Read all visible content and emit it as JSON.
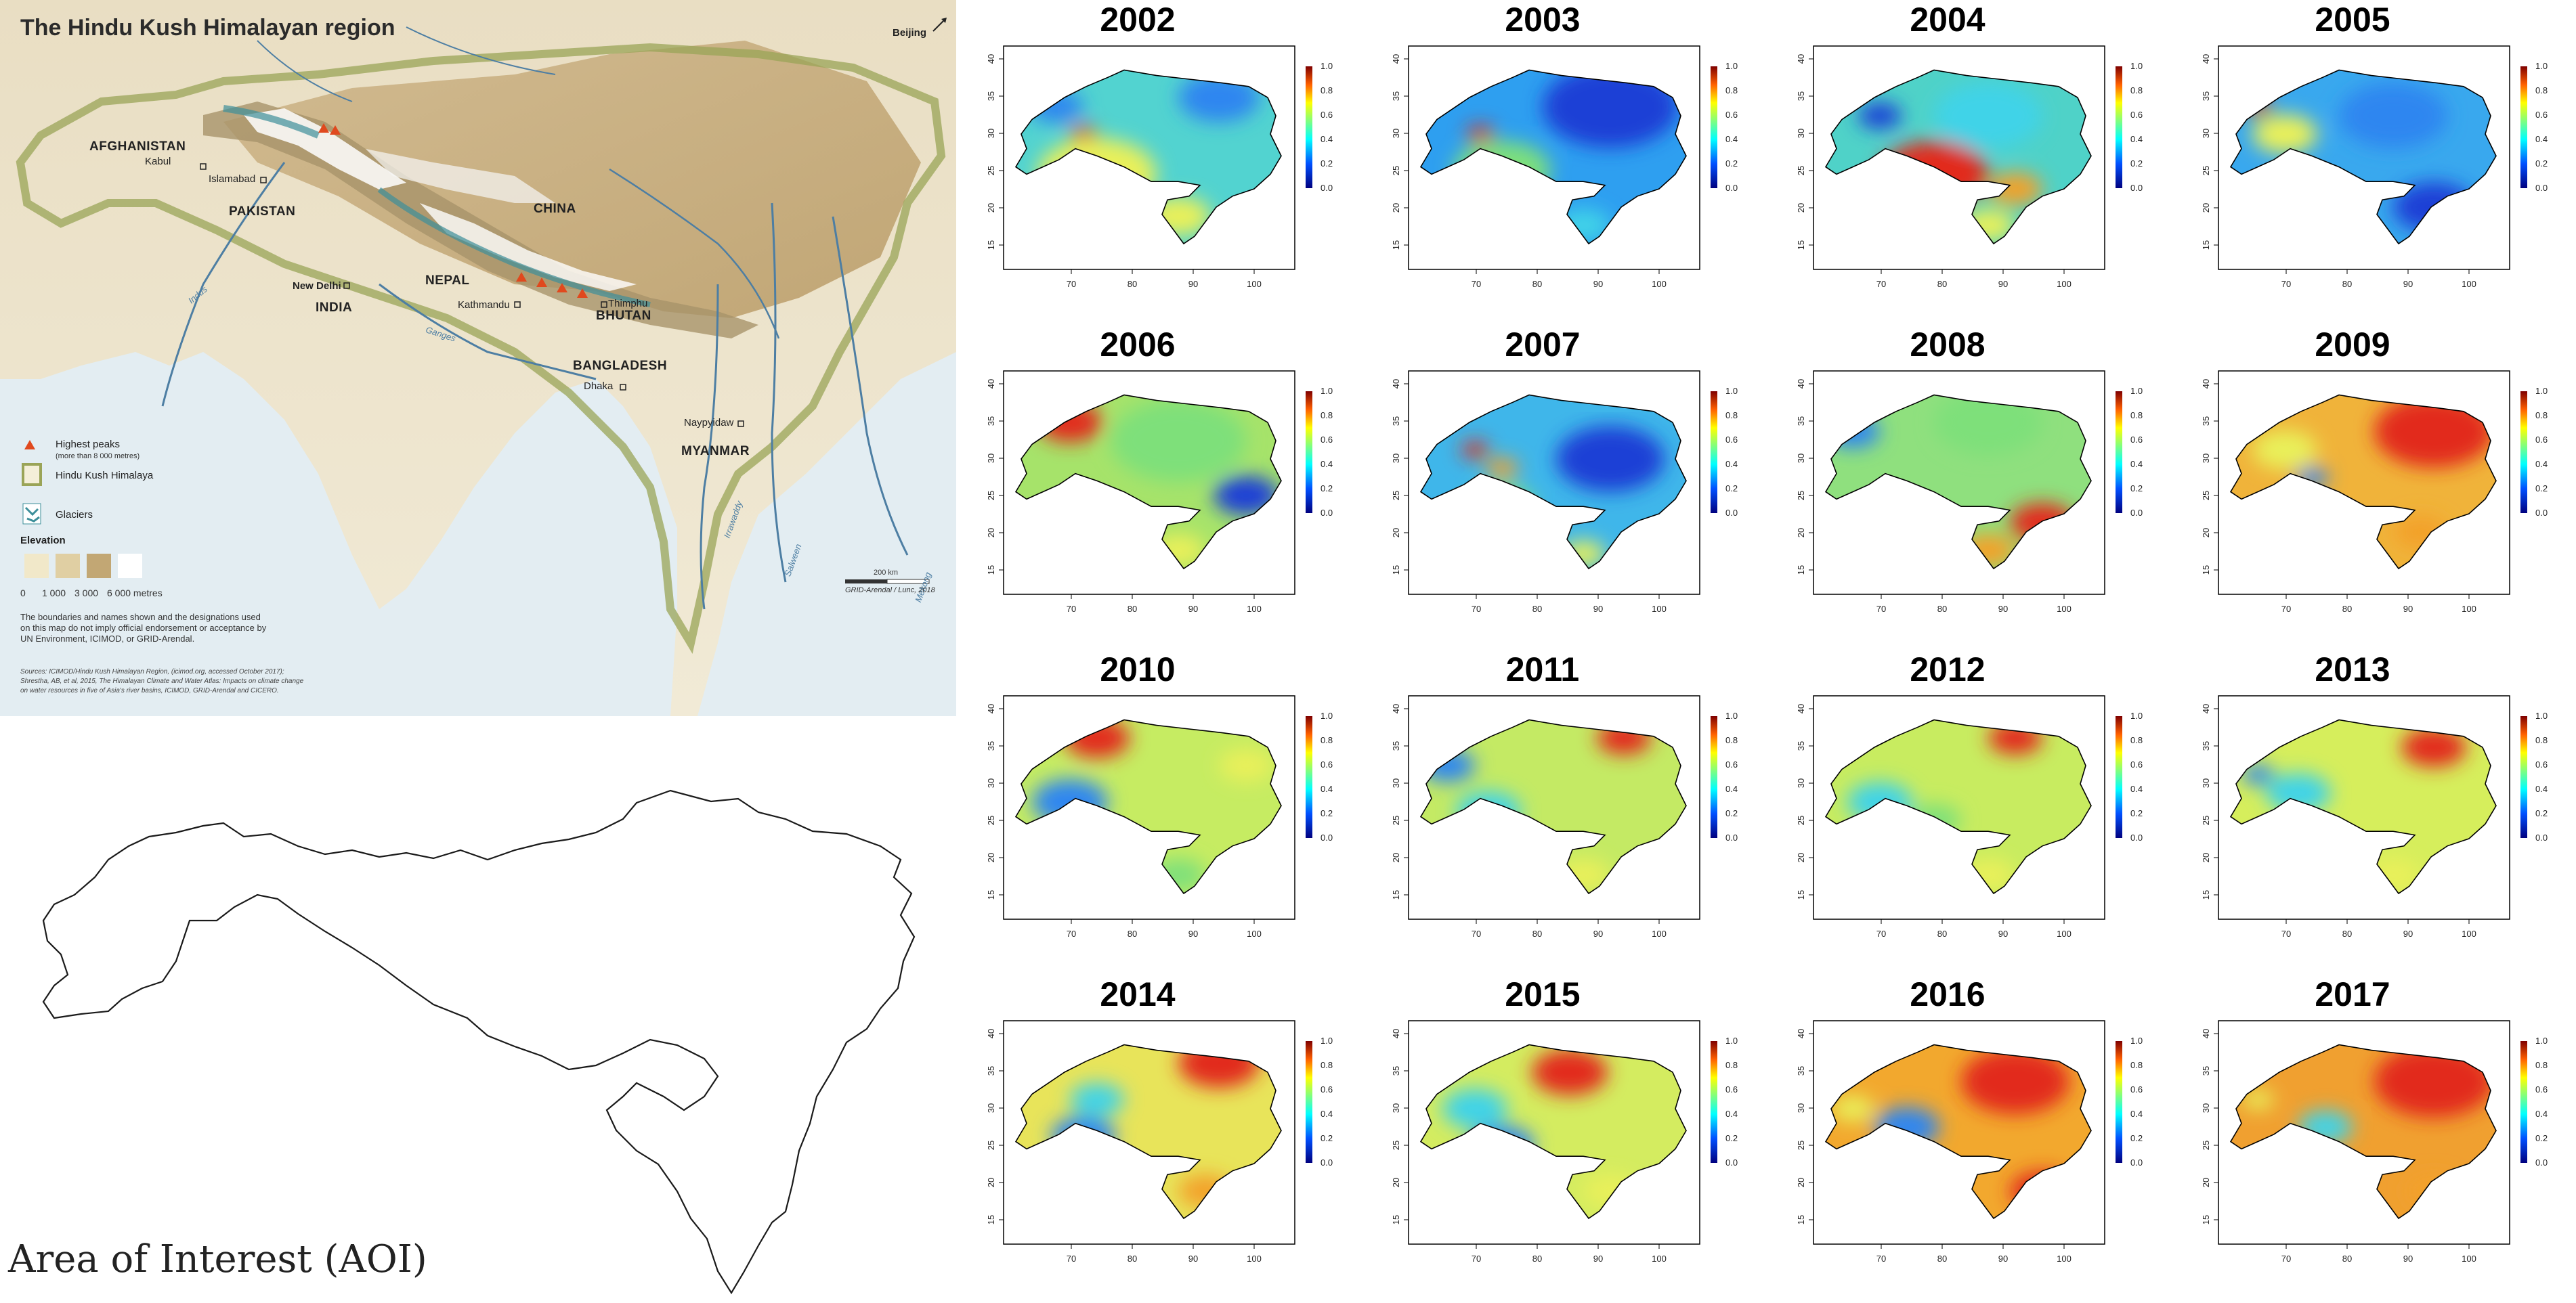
{
  "map": {
    "title": "The Hindu Kush Himalayan region",
    "countries": [
      {
        "id": "afghanistan",
        "name": "AFGHANISTAN"
      },
      {
        "id": "pakistan",
        "name": "PAKISTAN"
      },
      {
        "id": "china",
        "name": "CHINA"
      },
      {
        "id": "india",
        "name": "INDIA"
      },
      {
        "id": "nepal",
        "name": "NEPAL"
      },
      {
        "id": "bhutan",
        "name": "BHUTAN"
      },
      {
        "id": "bangladesh",
        "name": "BANGLADESH"
      },
      {
        "id": "myanmar",
        "name": "MYANMAR"
      }
    ],
    "cities": [
      {
        "id": "beijing",
        "name": "Beijing"
      },
      {
        "id": "kabul",
        "name": "Kabul"
      },
      {
        "id": "islamabad",
        "name": "Islamabad"
      },
      {
        "id": "new-delhi",
        "name": "New Delhi"
      },
      {
        "id": "kathmandu",
        "name": "Kathmandu"
      },
      {
        "id": "thimphu",
        "name": "Thimphu"
      },
      {
        "id": "dhaka",
        "name": "Dhaka"
      },
      {
        "id": "naypyidaw",
        "name": "Naypyidaw"
      }
    ],
    "rivers": [
      {
        "id": "indus",
        "name": "Indus"
      },
      {
        "id": "ganges",
        "name": "Ganges"
      },
      {
        "id": "irrawaddy",
        "name": "Irrawaddy"
      },
      {
        "id": "salween",
        "name": "Salween"
      },
      {
        "id": "mekong",
        "name": "Mekong"
      }
    ],
    "legend": {
      "peaks": "Highest peaks",
      "peaks_sub": "(more than 8 000 metres)",
      "hkh": "Hindu Kush Himalaya",
      "glaciers": "Glaciers",
      "elevation": "Elevation",
      "elevation_ticks": [
        "0",
        "1 000",
        "3 000",
        "6 000 metres"
      ]
    },
    "scale": "200 km",
    "credit": "GRID-Arendal / Lunc, 2018",
    "disclaimer": [
      "The boundaries and names shown and the designations used",
      "on this map do not imply official endorsement or acceptance by",
      "UN Environment, ICIMOD, or GRID-Arendal."
    ],
    "sources": [
      "Sources: ICIMOD/Hindu Kush Himalayan Region, (icimod.org, accessed October 2017);",
      "Shrestha, AB, et al, 2015, The Himalayan Climate and Water Atlas: Impacts on climate change",
      "on water resources in five of Asia's river basins, ICIMOD, GRID-Arendal and CICERO."
    ]
  },
  "aoi": {
    "label": "Area of Interest (AOI)"
  },
  "panels": {
    "years": [
      "2002",
      "2003",
      "2004",
      "2005",
      "2006",
      "2007",
      "2008",
      "2009",
      "2010",
      "2011",
      "2012",
      "2013",
      "2014",
      "2015",
      "2016",
      "2017"
    ],
    "x_ticks": [
      "70",
      "80",
      "90",
      "100"
    ],
    "y_ticks": [
      "15",
      "20",
      "25",
      "30",
      "35",
      "40"
    ],
    "colorbar_ticks": [
      "0.0",
      "0.2",
      "0.4",
      "0.6",
      "0.8",
      "1.0"
    ],
    "colors": {
      "low": "#00007f",
      "mid": "#7fff7f",
      "high": "#7f0000"
    }
  }
}
